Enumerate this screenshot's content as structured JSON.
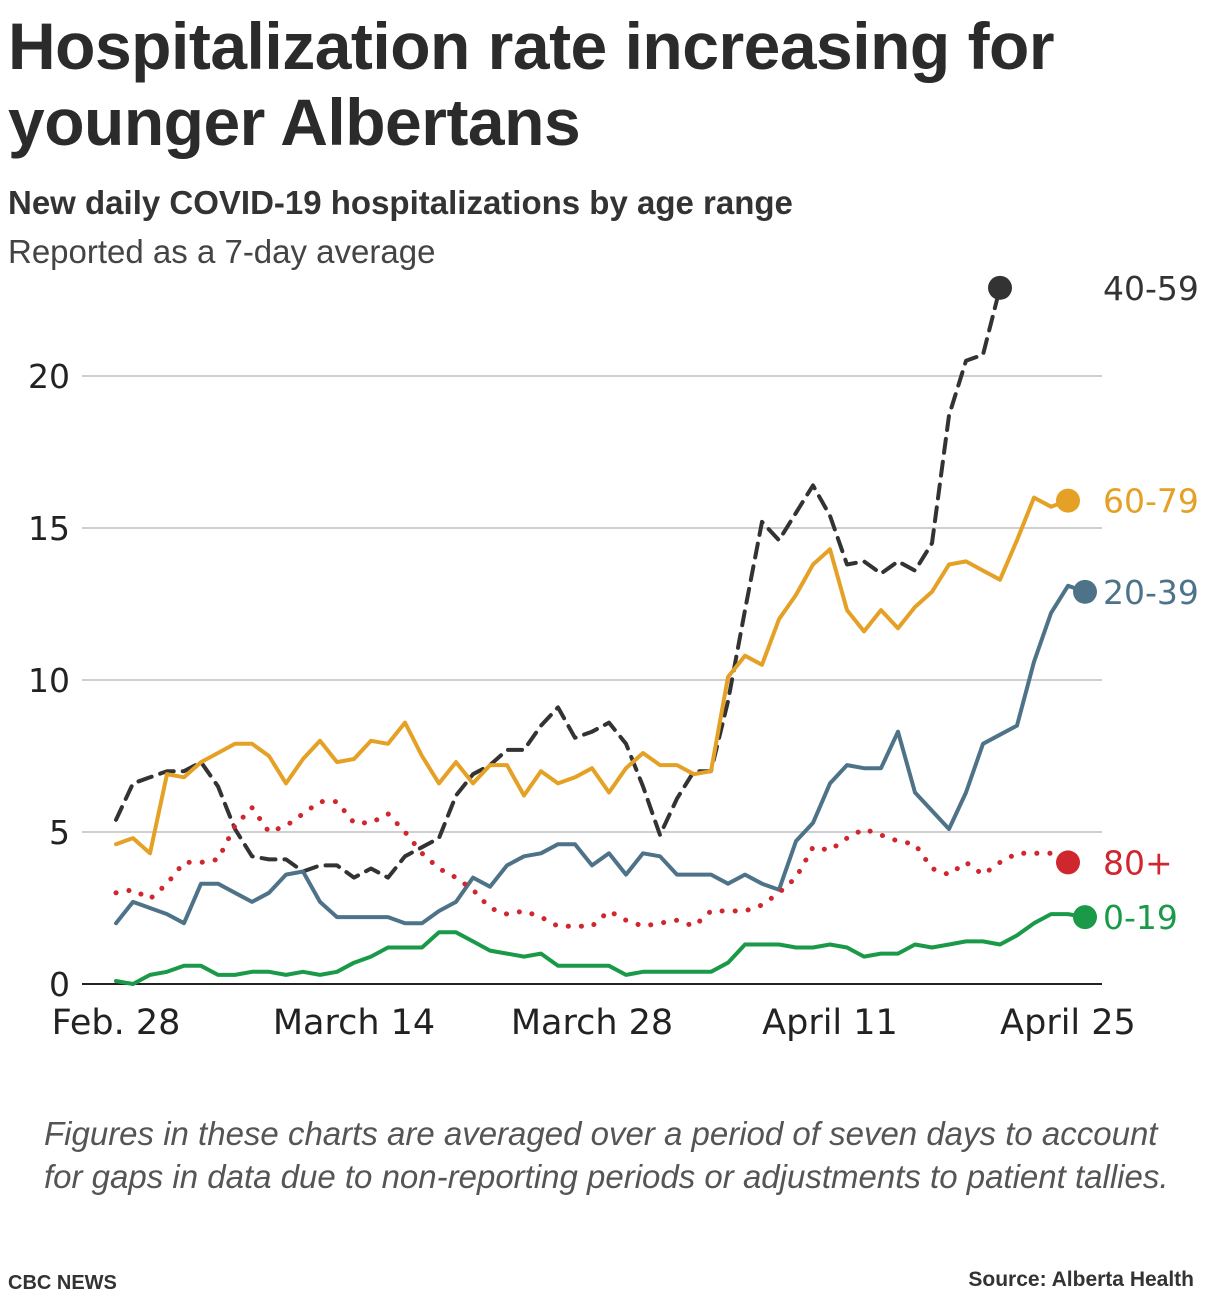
{
  "header": {
    "title": "Hospitalization rate increasing for younger Albertans",
    "subtitle": "New daily COVID-19 hospitalizations by age range",
    "note": "Reported as a 7-day average"
  },
  "footer": {
    "footnote": "Figures in these charts are averaged over a period of seven days to account for gaps in data due to non-reporting periods or adjustments to patient tallies.",
    "credit": "CBC NEWS",
    "source": "Source: Alberta Health"
  },
  "chart_data": {
    "type": "line",
    "title": "Hospitalization rate increasing for younger Albertans",
    "subtitle": "New daily COVID-19 hospitalizations by age range",
    "xlabel": "",
    "ylabel": "",
    "x_start": "Feb. 28",
    "x_ticks": [
      {
        "label": "Feb. 28",
        "day": 0
      },
      {
        "label": "March 14",
        "day": 14
      },
      {
        "label": "March 28",
        "day": 28
      },
      {
        "label": "April 11",
        "day": 42
      },
      {
        "label": "April 25",
        "day": 56
      }
    ],
    "ylim": [
      0,
      23
    ],
    "y_ticks": [
      0,
      5,
      10,
      15,
      20
    ],
    "grid": true,
    "legend": "end-of-line labels",
    "series": [
      {
        "name": "40-59",
        "color": "#333333",
        "style": "dashed",
        "values": [
          5.4,
          6.6,
          6.8,
          7.0,
          7.0,
          7.3,
          6.5,
          5.1,
          4.2,
          4.1,
          4.1,
          3.7,
          3.9,
          3.9,
          3.5,
          3.8,
          3.5,
          4.2,
          4.5,
          4.8,
          6.2,
          6.9,
          7.2,
          7.7,
          7.7,
          8.5,
          9.1,
          8.1,
          8.3,
          8.6,
          7.9,
          6.5,
          4.9,
          6.1,
          7.0,
          7.0,
          9.3,
          12.3,
          15.2,
          14.6,
          15.5,
          16.4,
          15.4,
          13.8,
          13.9,
          13.5,
          13.9,
          13.6,
          14.5,
          18.7,
          20.5,
          20.7,
          22.9
        ]
      },
      {
        "name": "60-79",
        "color": "#e4a126",
        "style": "solid",
        "values": [
          4.6,
          4.8,
          4.3,
          6.9,
          6.8,
          7.3,
          7.6,
          7.9,
          7.9,
          7.5,
          6.6,
          7.4,
          8.0,
          7.3,
          7.4,
          8.0,
          7.9,
          8.6,
          7.5,
          6.6,
          7.3,
          6.6,
          7.2,
          7.2,
          6.2,
          7.0,
          6.6,
          6.8,
          7.1,
          6.3,
          7.1,
          7.6,
          7.2,
          7.2,
          6.9,
          7.0,
          10.1,
          10.8,
          10.5,
          12.0,
          12.8,
          13.8,
          14.3,
          12.3,
          11.6,
          12.3,
          11.7,
          12.4,
          12.9,
          13.8,
          13.9,
          13.6,
          13.3,
          14.6,
          16.0,
          15.7,
          15.9
        ]
      },
      {
        "name": "20-39",
        "color": "#4e7389",
        "style": "solid",
        "values": [
          2.0,
          2.7,
          2.5,
          2.3,
          2.0,
          3.3,
          3.3,
          3.0,
          2.7,
          3.0,
          3.6,
          3.7,
          2.7,
          2.2,
          2.2,
          2.2,
          2.2,
          2.0,
          2.0,
          2.4,
          2.7,
          3.5,
          3.2,
          3.9,
          4.2,
          4.3,
          4.6,
          4.6,
          3.9,
          4.3,
          3.6,
          4.3,
          4.2,
          3.6,
          3.6,
          3.6,
          3.3,
          3.6,
          3.3,
          3.1,
          4.7,
          5.3,
          6.6,
          7.2,
          7.1,
          7.1,
          8.3,
          6.3,
          5.7,
          5.1,
          6.3,
          7.9,
          8.2,
          8.5,
          10.6,
          12.2,
          13.1,
          12.9
        ]
      },
      {
        "name": "80+",
        "color": "#d0272f",
        "style": "dotted",
        "values": [
          3.0,
          3.1,
          2.8,
          3.3,
          4.0,
          4.0,
          4.1,
          5.2,
          5.8,
          5.0,
          5.2,
          5.6,
          6.0,
          6.0,
          5.3,
          5.3,
          5.6,
          5.0,
          4.3,
          3.8,
          3.5,
          3.1,
          2.5,
          2.3,
          2.4,
          2.2,
          1.9,
          1.9,
          1.9,
          2.4,
          2.1,
          1.9,
          2.0,
          2.1,
          1.9,
          2.4,
          2.4,
          2.4,
          2.6,
          3.0,
          3.5,
          4.5,
          4.4,
          4.8,
          5.1,
          4.9,
          4.7,
          4.6,
          3.8,
          3.6,
          4.0,
          3.6,
          4.0,
          4.3,
          4.3,
          4.3,
          4.0
        ]
      },
      {
        "name": "0-19",
        "color": "#1a9a48",
        "style": "solid",
        "values": [
          0.1,
          0.0,
          0.3,
          0.4,
          0.6,
          0.6,
          0.3,
          0.3,
          0.4,
          0.4,
          0.3,
          0.4,
          0.3,
          0.4,
          0.7,
          0.9,
          1.2,
          1.2,
          1.2,
          1.7,
          1.7,
          1.4,
          1.1,
          1.0,
          0.9,
          1.0,
          0.6,
          0.6,
          0.6,
          0.6,
          0.3,
          0.4,
          0.4,
          0.4,
          0.4,
          0.4,
          0.7,
          1.3,
          1.3,
          1.3,
          1.2,
          1.2,
          1.3,
          1.2,
          0.9,
          1.0,
          1.0,
          1.3,
          1.2,
          1.3,
          1.4,
          1.4,
          1.3,
          1.6,
          2.0,
          2.3,
          2.3,
          2.2
        ]
      }
    ]
  }
}
